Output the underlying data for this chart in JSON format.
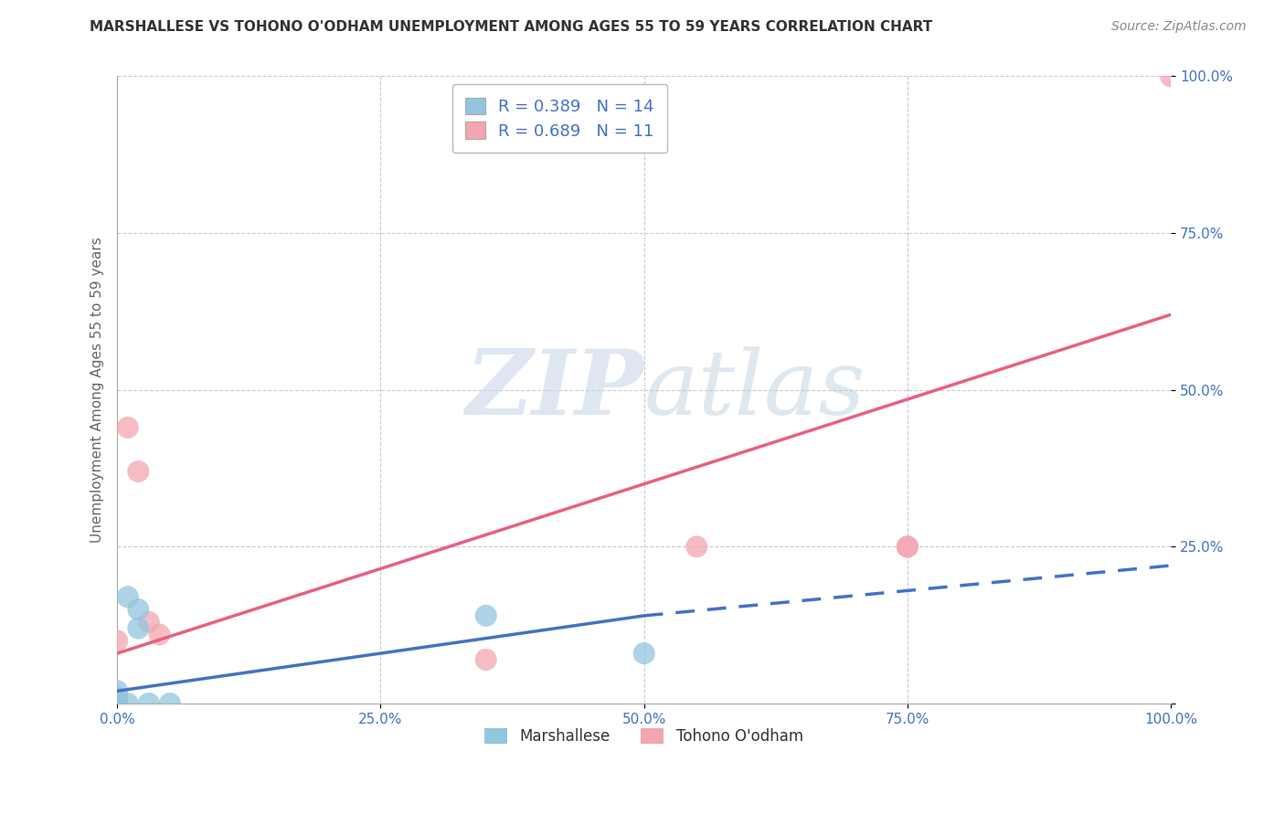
{
  "title": "MARSHALLESE VS TOHONO O'ODHAM UNEMPLOYMENT AMONG AGES 55 TO 59 YEARS CORRELATION CHART",
  "source": "Source: ZipAtlas.com",
  "ylabel": "Unemployment Among Ages 55 to 59 years",
  "xlim": [
    0,
    1.0
  ],
  "ylim": [
    0,
    1.0
  ],
  "xticks": [
    0.0,
    0.25,
    0.5,
    0.75,
    1.0
  ],
  "xticklabels": [
    "0.0%",
    "25.0%",
    "50.0%",
    "75.0%",
    "100.0%"
  ],
  "yticks": [
    0.0,
    0.25,
    0.5,
    0.75,
    1.0
  ],
  "yticklabels": [
    "",
    "25.0%",
    "50.0%",
    "75.0%",
    "100.0%"
  ],
  "blue_color": "#92c5de",
  "pink_color": "#f4a6b0",
  "blue_line_color": "#4472c4",
  "pink_line_color": "#e86080",
  "R_blue": 0.389,
  "N_blue": 14,
  "R_pink": 0.689,
  "N_pink": 11,
  "marshallese_x": [
    0.0,
    0.0,
    0.0,
    0.0,
    0.0,
    0.0,
    0.01,
    0.01,
    0.02,
    0.02,
    0.03,
    0.05,
    0.35,
    0.5
  ],
  "marshallese_y": [
    0.0,
    0.0,
    0.0,
    0.0,
    0.01,
    0.02,
    0.0,
    0.17,
    0.12,
    0.15,
    0.0,
    0.0,
    0.14,
    0.08
  ],
  "tohono_x": [
    0.0,
    0.0,
    0.01,
    0.02,
    0.03,
    0.04,
    0.35,
    0.55,
    0.75,
    0.75,
    1.0
  ],
  "tohono_y": [
    0.0,
    0.1,
    0.44,
    0.37,
    0.13,
    0.11,
    0.07,
    0.25,
    0.25,
    0.25,
    1.0
  ],
  "blue_line_x0": 0.0,
  "blue_line_y0": 0.02,
  "blue_line_x1": 0.5,
  "blue_line_y1": 0.14,
  "blue_line_dashed_x0": 0.5,
  "blue_line_dashed_y0": 0.14,
  "blue_line_dashed_x1": 1.0,
  "blue_line_dashed_y1": 0.22,
  "pink_line_x0": 0.0,
  "pink_line_y0": 0.08,
  "pink_line_x1": 1.0,
  "pink_line_y1": 0.62,
  "watermark_zip": "ZIP",
  "watermark_atlas": "atlas",
  "legend_blue_label": "Marshallese",
  "legend_pink_label": "Tohono O'odham",
  "background_color": "#ffffff",
  "grid_color": "#cccccc",
  "tick_color": "#4472c4",
  "title_color": "#333333",
  "source_color": "#888888"
}
